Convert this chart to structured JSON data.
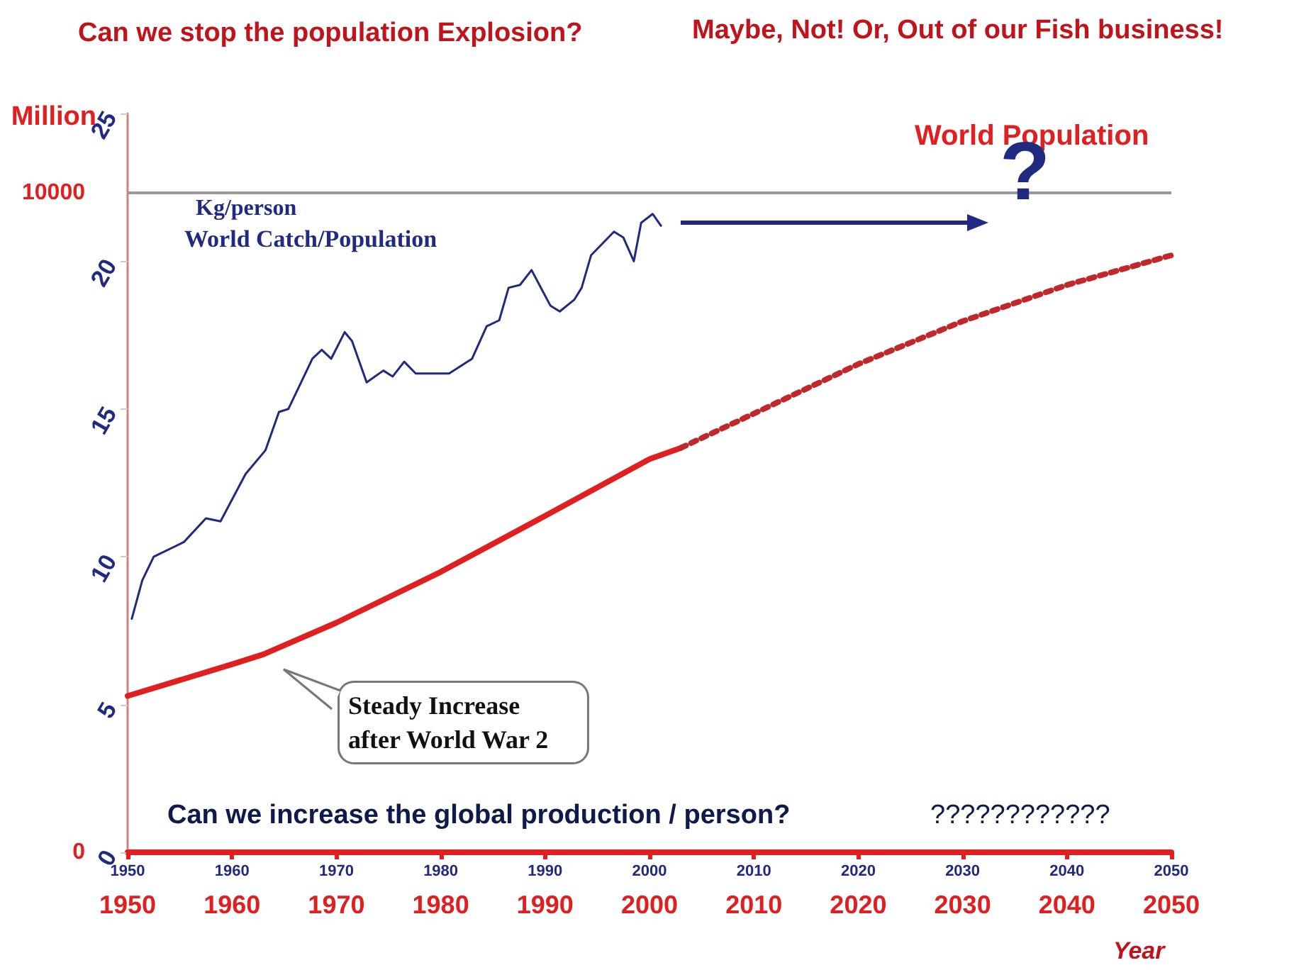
{
  "chart_data": {
    "type": "line",
    "title": "Can we stop the population Explosion?",
    "subtitle": "Maybe, Not! Or, Out of our Fish business!",
    "xlabel": "Year",
    "ylabel": "Kg/person",
    "y2label": "Million",
    "xlim": [
      1950,
      2050
    ],
    "xticks": [
      1950,
      1960,
      1970,
      1980,
      1990,
      2000,
      2010,
      2020,
      2030,
      2040,
      2050
    ],
    "x2lim": [
      1950,
      2050
    ],
    "x2ticks": [
      1950,
      1960,
      1970,
      1980,
      1990,
      2000,
      2010,
      2020,
      2030,
      2040,
      2050
    ],
    "ylim": [
      0,
      25
    ],
    "yticks": [
      0,
      5,
      10,
      15,
      20,
      25
    ],
    "y2lim": [
      0,
      11200
    ],
    "y2ticks": [
      0,
      10000
    ],
    "grid": false,
    "legend": false,
    "marker": "none",
    "ref_lines": [
      {
        "axis": "y2",
        "value": 10000,
        "color": "#999999",
        "line_style": "solid"
      }
    ],
    "annotations": [
      "?",
      "Steady Increase\nafter World War 2",
      "Can we increase the global production / person?",
      "????????????"
    ],
    "series": [
      {
        "name": "World Catch/Population",
        "color": "#1f2a80",
        "line_style": "solid",
        "x": [
          1950.4,
          1951.4,
          1952.5,
          1955.4,
          1957.5,
          1958.9,
          1961.3,
          1963.2,
          1964.5,
          1965.4,
          1967.7,
          1968.6,
          1969.5,
          1970.8,
          1971.5,
          1972.9,
          1974.5,
          1975.4,
          1976.5,
          1977.6,
          1980.8,
          1983.0,
          1984.4,
          1985.6,
          1986.5,
          1987.6,
          1988.7,
          1990.5,
          1991.4,
          1992.8,
          1993.5,
          1994.4,
          1996.6,
          1997.5,
          1998.5,
          1999.2,
          2000.3,
          2001.1
        ],
        "values": [
          7.9,
          9.2,
          10.0,
          10.5,
          11.3,
          11.2,
          12.8,
          13.6,
          14.9,
          15.0,
          16.7,
          17.0,
          16.7,
          17.6,
          17.3,
          15.9,
          16.3,
          16.1,
          16.6,
          16.2,
          16.2,
          16.7,
          17.8,
          18.0,
          19.1,
          19.2,
          19.7,
          18.5,
          18.3,
          18.7,
          19.1,
          20.2,
          21.0,
          20.8,
          20.0,
          21.3,
          21.6,
          21.2
        ]
      },
      {
        "name": "World Population",
        "color": "#e02020",
        "axis": "y2",
        "line_style": "solid",
        "x": [
          1950,
          1960,
          1963,
          1970,
          1980,
          1990,
          2000,
          2003
        ],
        "values": [
          2370,
          2850,
          3000,
          3480,
          4250,
          5100,
          5960,
          6130
        ]
      },
      {
        "color": "#c0282c",
        "axis": "y2",
        "line_style": "dotted",
        "x": [
          2003,
          2010,
          2020,
          2030,
          2040,
          2050
        ],
        "values": [
          6130,
          6650,
          7400,
          8050,
          8600,
          9050
        ]
      }
    ]
  }
}
